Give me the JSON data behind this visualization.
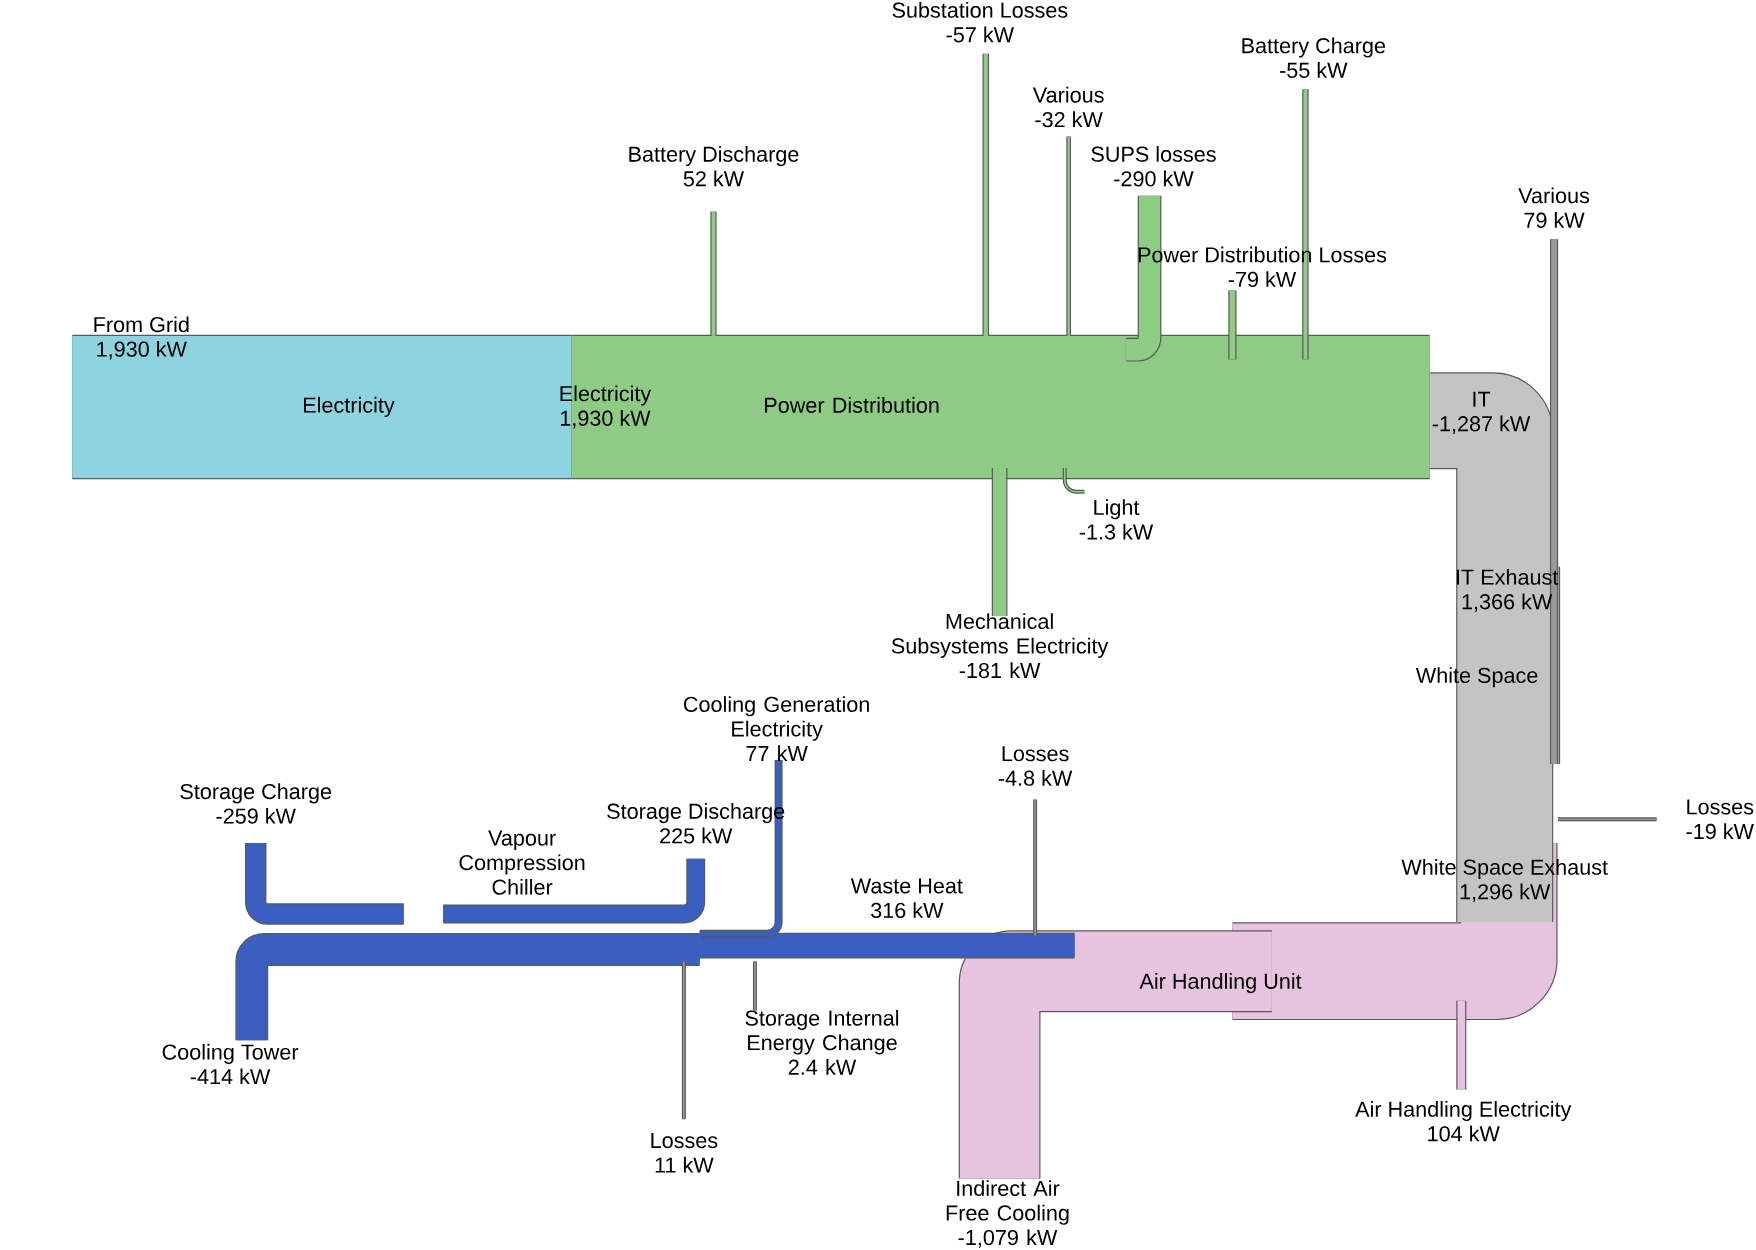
{
  "chart_data": {
    "type": "other",
    "categories": [
      "From Grid",
      "Electricity",
      "Battery Discharge",
      "Substation Losses",
      "Various",
      "SUPS losses",
      "Battery Charge",
      "Power Distribution Losses",
      "IT",
      "Various",
      "Light",
      "Mechanical Subsystems Electricity",
      "IT Exhaust",
      "Losses",
      "White Space Exhaust",
      "Cooling Generation Electricity",
      "Storage Discharge",
      "Storage Charge",
      "Losses",
      "Waste Heat",
      "Cooling Tower",
      "Storage Internal Energy Change",
      "Losses",
      "Air Handling Electricity",
      "Indirect Air Free Cooling"
    ],
    "values": [
      1930,
      1930,
      52,
      -57,
      -32,
      -290,
      -55,
      -79,
      -1287,
      79,
      -1.3,
      -181,
      1366,
      -19,
      1296,
      77,
      225,
      -259,
      -4.8,
      316,
      -414,
      2.4,
      11,
      104,
      -1079
    ],
    "value_labels": [
      "1,930 kW",
      "1,930 kW",
      "52 kW",
      "-57 kW",
      "-32 kW",
      "-290 kW",
      "-55 kW",
      "-79 kW",
      "-1,287 kW",
      "79 kW",
      "-1.3 kW",
      "-181 kW",
      "1,366 kW",
      "-19 kW",
      "1,296 kW",
      "77 kW",
      "225 kW",
      "-259 kW",
      "-4.8 kW",
      "316 kW",
      "-414 kW",
      "2.4 kW",
      "11 kW",
      "104 kW",
      "-1,079 kW"
    ],
    "colors": [
      "#8dd3e0",
      "#8ecb84",
      "#8ecb84",
      "#8ecb84",
      "#8ecb84",
      "#8ecb84",
      "#8ecb84",
      "#8ecb84",
      "#c4c4c4",
      "#9a9a9a",
      "#8ecb84",
      "#8ecb84",
      "#b4b4b4",
      "#9a9a9a",
      "#e6c3de",
      "#3a5fc0",
      "#3a5fc0",
      "#3a5fc0",
      "#9a9a9a",
      "#3a5fc0",
      "#3a5fc0",
      "#9a9a9a",
      "#9a9a9a",
      "#e6c3de",
      "#e6c3de"
    ],
    "annotations": [
      "Electricity",
      "Power Distribution",
      "White Space",
      "Vapour Compression Chiller",
      "Air Handling Unit"
    ]
  }
}
